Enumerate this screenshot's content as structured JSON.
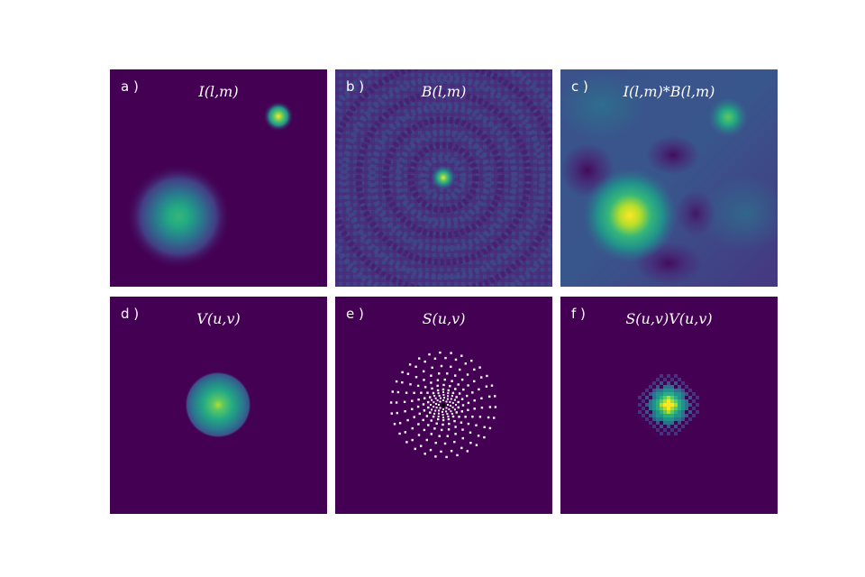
{
  "figure": {
    "colors": {
      "background": "#440154",
      "colormap": [
        "#440154",
        "#3b528b",
        "#21918c",
        "#5ec962",
        "#fde725"
      ],
      "label_text": "#ffffff",
      "sampling_points": "#ffffff"
    },
    "panels": [
      {
        "letter": "a )",
        "title": "I(l,m)"
      },
      {
        "letter": "b )",
        "title": "B(l,m)"
      },
      {
        "letter": "c )",
        "title": "I(l,m)*B(l,m)"
      },
      {
        "letter": "d )",
        "title": "V(u,v)"
      },
      {
        "letter": "e )",
        "title": "S(u,v)"
      },
      {
        "letter": "f )",
        "title": "S(u,v)V(u,v)"
      }
    ]
  }
}
